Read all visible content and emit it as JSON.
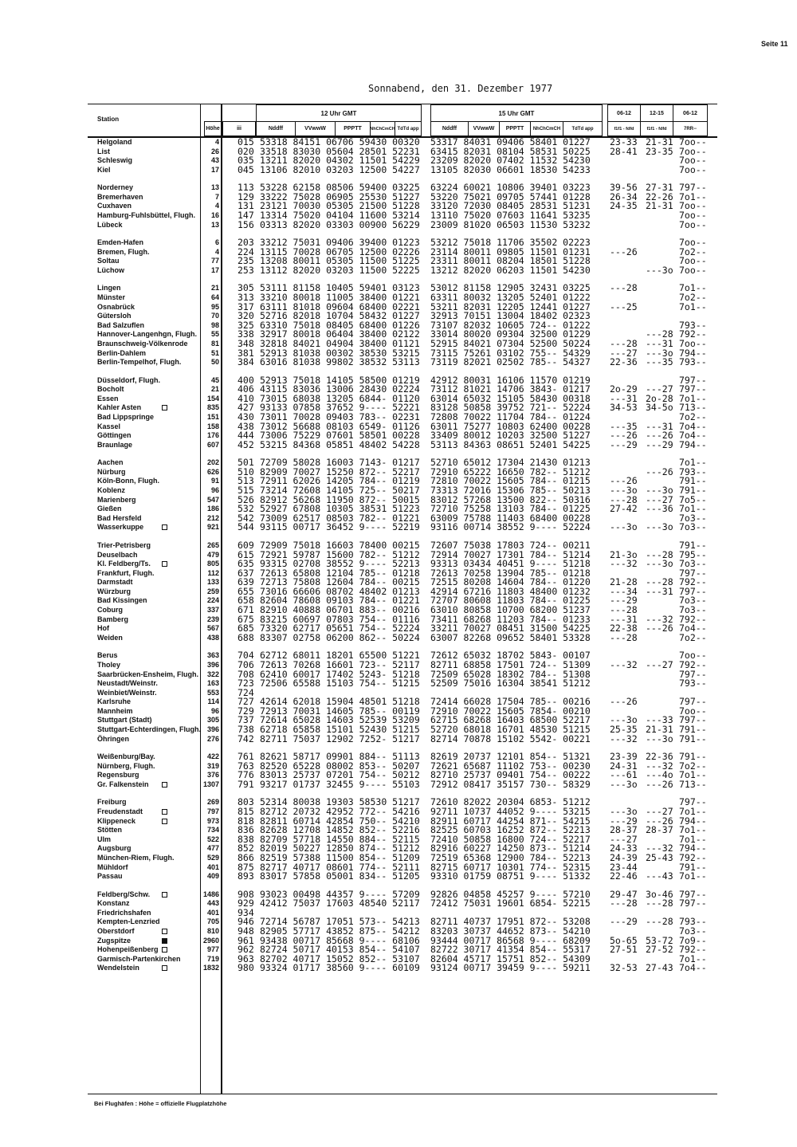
{
  "page_label": "Seite 11",
  "title": "Sonnabend, den 31. Dezember 1977",
  "header": {
    "station": "Station",
    "hoehe": "Höhe",
    "iii": "iii",
    "obs12": "12 Uhr GMT",
    "obs15": "15 Uhr GMT",
    "cols": [
      "Nddff",
      "VVwwW",
      "PPPTT",
      "NhChCmCH",
      "TdTd app"
    ],
    "right_top": [
      "06-12",
      "12-15",
      "06-12"
    ],
    "right_sub": [
      "f1f1 - fdfd",
      "f1f1 - fdfd",
      "7RR--"
    ]
  },
  "groups": [
    {
      "rows": [
        [
          "Helgoland",
          "",
          "4",
          "015",
          "53318 84151 06706 59430 00320",
          "53317 84031 09406 58401 01227",
          "23-33",
          "21-31",
          "7oo--"
        ],
        [
          "List",
          "",
          "26",
          "020",
          "33518 83030 05604 28501 52231",
          "63415 82031 08104 58531 50225",
          "28-41",
          "23-35",
          "7oo--"
        ],
        [
          "Schleswig",
          "",
          "43",
          "035",
          "13211 82020 04302 11501 54229",
          "23209 82020 07402 11532 54230",
          "",
          "",
          "7oo--"
        ],
        [
          "Kiel",
          "",
          "17",
          "045",
          "13106 82010 03203 12500 54227",
          "13105 82030 06601 18530 54233",
          "",
          "",
          "7oo--"
        ]
      ]
    },
    {
      "rows": [
        [
          "Norderney",
          "",
          "13",
          "113",
          "53228 62158 08506 59400 03225",
          "63224 60021 10806 39401 03223",
          "39-56",
          "27-31",
          "797--"
        ],
        [
          "Bremerhaven",
          "",
          "7",
          "129",
          "33222 75028 06905 25530 51227",
          "53220 75021 09705 57441 01228",
          "26-34",
          "22-26",
          "7o1--"
        ],
        [
          "Cuxhaven",
          "",
          "4",
          "131",
          "23121 70030 05305 21500 51228",
          "33120 72030 08405 28531 51231",
          "24-35",
          "21-31",
          "7oo--"
        ],
        [
          "Hamburg-Fuhlsbüttel, Flugh.",
          "",
          "16",
          "147",
          "13314 75020 04104 11600 53214",
          "13110 75020 07603 11641 53235",
          "",
          "",
          "7oo--"
        ],
        [
          "Lübeck",
          "",
          "13",
          "156",
          "03313 82020 03303 00900 56229",
          "23009 81020 06503 11530 53232",
          "",
          "",
          "7oo--"
        ]
      ]
    },
    {
      "rows": [
        [
          "Emden-Hafen",
          "",
          "6",
          "203",
          "33212 75031 09406 39400 01223",
          "53212 75018 11706 35502 02223",
          "",
          "",
          "7oo--"
        ],
        [
          "Bremen, Flugh.",
          "",
          "4",
          "224",
          "13115 70028 06705 12500 02226",
          "23114 80011 09805 11501 01231",
          "---26",
          "",
          "7o2--"
        ],
        [
          "Soltau",
          "",
          "77",
          "235",
          "13208 80011 05305 11500 51225",
          "23311 80011 08204 18501 51228",
          "",
          "",
          "7oo--"
        ],
        [
          "Lüchow",
          "",
          "17",
          "253",
          "13112 82020 03203 11500 52225",
          "13212 82020 06203 11501 54230",
          "",
          "---3o",
          "7oo--"
        ]
      ]
    },
    {
      "rows": [
        [
          "Lingen",
          "",
          "21",
          "305",
          "53111 81158 10405 59401 03123",
          "53012 81158 12905 32431 03225",
          "---28",
          "",
          "7o1--"
        ],
        [
          "Münster",
          "",
          "64",
          "313",
          "33210 80018 11005 38400 01221",
          "63311 80032 13205 52401 01222",
          "",
          "",
          "7o2--"
        ],
        [
          "Osnabrück",
          "",
          "95",
          "317",
          "63111 81018 09604 68400 02221",
          "53211 82031 12205 12441 01227",
          "---25",
          "",
          "7o1--"
        ],
        [
          "Gütersloh",
          "",
          "70",
          "320",
          "52716 82018 10704 58432 01227",
          "32913 70151 13004 18402 02323",
          "",
          "",
          ""
        ],
        [
          "Bad Salzuflen",
          "",
          "98",
          "325",
          "63310 75018 08405 68400 01226",
          "73107 82032 10605 724-- 01222",
          "",
          "",
          "793--"
        ],
        [
          "Hannover-Langenhgn, Flugh.",
          "",
          "55",
          "338",
          "32917 80018 06404 38400 02122",
          "33014 80020 09304 32500 01229",
          "",
          "---28",
          "792--"
        ],
        [
          "Braunschweig-Völkenrode",
          "",
          "81",
          "348",
          "32818 84021 04904 38400 01121",
          "52915 84021 07304 52500 50224",
          "---28",
          "---31",
          "7oo--"
        ],
        [
          "Berlin-Dahlem",
          "",
          "51",
          "381",
          "52913 81038 00302 38530 53215",
          "73115 75261 03102 755-- 54329",
          "---27",
          "---3o",
          "794--"
        ],
        [
          "Berlin-Tempelhof, Flugh.",
          "",
          "50",
          "384",
          "63016 81038 99802 38532 53113",
          "73119 82021 02502 785-- 54327",
          "22-36",
          "---35",
          "793--"
        ]
      ]
    },
    {
      "rows": [
        [
          "Düsseldorf, Flugh.",
          "",
          "45",
          "400",
          "52913 75018 14105 58500 01219",
          "42912 80031 16106 11570 01219",
          "",
          "",
          "797--"
        ],
        [
          "Bocholt",
          "",
          "21",
          "406",
          "43115 83036 13006 28430 02224",
          "73112 81021 14706 3843- 01217",
          "2o-29",
          "---27",
          "797--"
        ],
        [
          "Essen",
          "",
          "154",
          "410",
          "73015 68038 13205 6844- 01120",
          "63014 65032 15105 58430 00318",
          "---31",
          "2o-28",
          "7o1--"
        ],
        [
          "Kahler Asten",
          "open",
          "835",
          "427",
          "93133 07858 37652 9---- 52221",
          "83128 50858 39752 721-- 52224",
          "34-53",
          "34-5o",
          "713--"
        ],
        [
          "Bad Lippspringe",
          "",
          "151",
          "430",
          "73011 70028 09403 783-- 02231",
          "72808 70022 11704 784-- 01224",
          "",
          "",
          "7o2--"
        ],
        [
          "Kassel",
          "",
          "158",
          "438",
          "73012 56688 08103 6549- 01126",
          "63011 75277 10803 62400 00228",
          "---35",
          "---31",
          "7o4--"
        ],
        [
          "Göttingen",
          "",
          "176",
          "444",
          "73006 75229 07601 58501 00228",
          "33409 80012 10203 32500 51227",
          "---26",
          "---26",
          "7o4--"
        ],
        [
          "Braunlage",
          "",
          "607",
          "452",
          "53215 84368 05851 48402 54228",
          "53113 84363 08651 52401 54225",
          "---29",
          "---29",
          "794--"
        ]
      ]
    },
    {
      "rows": [
        [
          "Aachen",
          "",
          "202",
          "501",
          "72709 58028 16003 7143- 01217",
          "52710 65012 17304 21430 01213",
          "",
          "",
          "7o1--"
        ],
        [
          "Nürburg",
          "",
          "626",
          "510",
          "82909 70027 15250 872-- 52217",
          "72910 65222 16650 782-- 51212",
          "",
          "---26",
          "793--"
        ],
        [
          "Köln-Bonn, Flugh.",
          "",
          "91",
          "513",
          "72911 62026 14205 784-- 01219",
          "72810 70022 15605 784-- 01215",
          "---26",
          "",
          "791--"
        ],
        [
          "Koblenz",
          "",
          "96",
          "515",
          "73214 72608 14105 725-- 50217",
          "73313 72016 15306 785-- 50213",
          "---3o",
          "---3o",
          "791--"
        ],
        [
          "Marienberg",
          "",
          "547",
          "526",
          "82912 56268 11950 872-- 50015",
          "83012 57268 13500 822-- 50316",
          "---28",
          "---27",
          "7o5--"
        ],
        [
          "Gießen",
          "",
          "186",
          "532",
          "52927 67808 10305 38531 51223",
          "72710 75258 13103 784-- 01225",
          "27-42",
          "---36",
          "7o1--"
        ],
        [
          "Bad Hersfeld",
          "",
          "212",
          "542",
          "73009 62517 08503 782-- 01221",
          "63009 75788 11403 68400 00228",
          "",
          "",
          "7o3--"
        ],
        [
          "Wasserkuppe",
          "open",
          "921",
          "544",
          "93115 00717 36452 9---- 52219",
          "93116 00714 38552 9---- 52224",
          "---3o",
          "---3o",
          "7o3--"
        ]
      ]
    },
    {
      "rows": [
        [
          "Trier-Petrisberg",
          "",
          "265",
          "609",
          "72909 75018 16603 78400 00215",
          "72607 75038 17803 724-- 00211",
          "",
          "",
          "791--"
        ],
        [
          "Deuselbach",
          "",
          "479",
          "615",
          "72921 59787 15600 782-- 51212",
          "72914 70027 17301 784-- 51214",
          "21-3o",
          "---28",
          "795--"
        ],
        [
          "Kl. Feldberg/Ts.",
          "open",
          "805",
          "635",
          "93315 02708 38552 9---- 52213",
          "93313 03434 40451 9---- 51218",
          "---32",
          "---3o",
          "7o3--"
        ],
        [
          "Frankfurt, Flugh.",
          "",
          "112",
          "637",
          "72613 65808 12104 785-- 01218",
          "72613 70258 13904 785-- 01218",
          "",
          "",
          "797--"
        ],
        [
          "Darmstadt",
          "",
          "133",
          "639",
          "72713 75808 12604 784-- 00215",
          "72515 80208 14604 784-- 01220",
          "21-28",
          "---28",
          "792--"
        ],
        [
          "Würzburg",
          "",
          "259",
          "655",
          "73016 66606 08702 48402 01213",
          "42914 67216 11803 48400 01232",
          "---34",
          "---31",
          "797--"
        ],
        [
          "Bad Kissingen",
          "",
          "224",
          "658",
          "82604 78608 09103 784-- 01221",
          "72707 80608 11803 784-- 01225",
          "---29",
          "",
          "7o3--"
        ],
        [
          "Coburg",
          "",
          "337",
          "671",
          "82910 40888 06701 883-- 00216",
          "63010 80858 10700 68200 51237",
          "---28",
          "",
          "7o3--"
        ],
        [
          "Bamberg",
          "",
          "239",
          "675",
          "83215 60697 07803 754-- 01116",
          "73411 68268 11203 784-- 01233",
          "---31",
          "---32",
          "792--"
        ],
        [
          "Hof",
          "",
          "567",
          "685",
          "73320 62717 05651 754-- 52224",
          "33211 70027 08451 31500 54225",
          "22-38",
          "---26",
          "7o4--"
        ],
        [
          "Weiden",
          "",
          "438",
          "688",
          "83307 02758 06200 862-- 50224",
          "63007 82268 09652 58401 53328",
          "---28",
          "",
          "7o2--"
        ]
      ]
    },
    {
      "rows": [
        [
          "Berus",
          "",
          "363",
          "704",
          "62712 68011 18201 65500 51221",
          "72612 65032 18702 5843- 00107",
          "",
          "",
          "7oo--"
        ],
        [
          "Tholey",
          "",
          "396",
          "706",
          "72613 70268 16601 723-- 52117",
          "82711 68858 17501 724-- 51309",
          "---32",
          "---27",
          "792--"
        ],
        [
          "Saarbrücken-Ensheim, Flugh.",
          "",
          "322",
          "708",
          "62410 60017 17402 5243- 51218",
          "72509 65028 18302 784-- 51308",
          "",
          "",
          "797--"
        ],
        [
          "Neustadt/Weinstr.",
          "",
          "163",
          "723",
          "72506 65588 15103 754-- 51215",
          "52509 75016 16304 38541 51212",
          "",
          "",
          "793--"
        ],
        [
          "Weinbiet/Weinstr.",
          "",
          "553",
          "724",
          "",
          "",
          "",
          "",
          ""
        ],
        [
          "Karlsruhe",
          "",
          "114",
          "727",
          "42614 62018 15904 48501 51218",
          "72414 66028 17504 785-- 00216",
          "---26",
          "",
          "797--"
        ],
        [
          "Mannheim",
          "",
          "96",
          "729",
          "72913 70031 14605 785-- 00119",
          "72910 70022 15605 7854- 00210",
          "",
          "",
          "7oo--"
        ],
        [
          "Stuttgart (Stadt)",
          "",
          "305",
          "737",
          "72614 65028 14603 52539 53209",
          "62715 68268 16403 68500 52217",
          "---3o",
          "---33",
          "797--"
        ],
        [
          "Stuttgart-Echterdingen, Flugh.",
          "",
          "396",
          "738",
          "62718 65858 15101 52430 51215",
          "52720 68018 16701 48530 51215",
          "25-35",
          "21-31",
          "791--"
        ],
        [
          "Öhringen",
          "",
          "276",
          "742",
          "82711 75037 12902 7252- 51217",
          "82714 70878 15102 5542- 00221",
          "---32",
          "---3o",
          "791--"
        ]
      ]
    },
    {
      "rows": [
        [
          "Weißenburg/Bay.",
          "",
          "422",
          "761",
          "82621 58717 09901 884-- 51113",
          "82619 20737 12101 854-- 51321",
          "23-39",
          "22-36",
          "791--"
        ],
        [
          "Nürnberg, Flugh.",
          "",
          "319",
          "763",
          "82520 65228 08002 853-- 50207",
          "72621 65687 11102 753-- 00230",
          "24-31",
          "---32",
          "7o2--"
        ],
        [
          "Regensburg",
          "",
          "376",
          "776",
          "83013 25737 07201 754-- 50212",
          "82710 25737 09401 754-- 00222",
          "---61",
          "---4o",
          "7o1--"
        ],
        [
          "Gr. Falkenstein",
          "open",
          "1307",
          "791",
          "93217 01737 32455 9---- 55103",
          "72912 08417 35157 730-- 58329",
          "---3o",
          "---26",
          "713--"
        ]
      ]
    },
    {
      "rows": [
        [
          "Freiburg",
          "",
          "269",
          "803",
          "52314 80038 19303 58530 51217",
          "72610 82022 20304 6853- 51212",
          "",
          "",
          "797--"
        ],
        [
          "Freudenstadt",
          "open",
          "797",
          "815",
          "82712 20732 42952 772-- 54216",
          "92711 10737 44052 9---- 53215",
          "---3o",
          "---27",
          "7o1--"
        ],
        [
          "Klippeneck",
          "open",
          "973",
          "818",
          "82811 60714 42854 750-- 54210",
          "82911 60717 44254 871-- 54215",
          "---29",
          "---26",
          "794--"
        ],
        [
          "Stötten",
          "",
          "734",
          "836",
          "82628 12708 14852 852-- 52216",
          "82525 60703 16252 872-- 52213",
          "28-37",
          "28-37",
          "7o1--"
        ],
        [
          "Ulm",
          "",
          "522",
          "838",
          "82709 57718 14550 884-- 52115",
          "72410 50858 16800 724-- 52217",
          "---27",
          "",
          "7o1--"
        ],
        [
          "Augsburg",
          "",
          "477",
          "852",
          "82019 50227 12850 874-- 51212",
          "82916 60227 14250 873-- 51214",
          "24-33",
          "---32",
          "794--"
        ],
        [
          "München-Riem, Flugh.",
          "",
          "529",
          "866",
          "82519 57388 11500 854-- 51209",
          "72519 65368 12900 784-- 52213",
          "24-39",
          "25-43",
          "792--"
        ],
        [
          "Mühldorf",
          "",
          "401",
          "875",
          "82717 40717 08601 774-- 52111",
          "82715 60717 10301 774-- 52315",
          "23-44",
          "",
          "791--"
        ],
        [
          "Passau",
          "",
          "409",
          "893",
          "83017 57858 05001 834-- 51205",
          "93310 01759 08751 9---- 51332",
          "22-46",
          "---43",
          "7o1--"
        ]
      ]
    },
    {
      "rows": [
        [
          "Feldberg/Schw.",
          "open",
          "1486",
          "908",
          "93023 00498 44357 9---- 57209",
          "92826 04858 45257 9---- 57210",
          "29-47",
          "3o-46",
          "797--"
        ],
        [
          "Konstanz",
          "",
          "443",
          "929",
          "42412 75037 17603 48540 52117",
          "72412 75031 19601 6854- 52215",
          "---28",
          "---28",
          "797--"
        ],
        [
          "Friedrichshafen",
          "",
          "401",
          "934",
          "",
          "",
          "",
          "",
          ""
        ],
        [
          "Kempten-Lenzried",
          "",
          "705",
          "946",
          "72714 56787 17051 573-- 54213",
          "82711 40737 17951 872-- 53208",
          "---29",
          "---28",
          "793--"
        ],
        [
          "Oberstdorf",
          "open",
          "810",
          "948",
          "82905 57717 43852 875-- 54212",
          "83203 30737 44652 873-- 54210",
          "",
          "",
          "7o3--"
        ],
        [
          "Zugspitze",
          "filled",
          "2960",
          "961",
          "93438 00717 85668 9---- 68106",
          "93444 00717 86568 9---- 68209",
          "5o-65",
          "53-72",
          "7o9--"
        ],
        [
          "Hohenpeißenberg",
          "open",
          "977",
          "962",
          "82724 50717 40153 854-- 54107",
          "82722 30717 41354 854-- 55317",
          "27-51",
          "27-52",
          "792--"
        ],
        [
          "Garmisch-Partenkirchen",
          "",
          "719",
          "963",
          "82702 40717 15052 852-- 53107",
          "82604 45717 15751 852-- 54309",
          "",
          "",
          "7o1--"
        ],
        [
          "Wendelstein",
          "open",
          "1832",
          "980",
          "93324 01717 38560 9---- 60109",
          "93124 00717 39459 9---- 59211",
          "32-53",
          "27-43",
          "7o4--"
        ]
      ]
    }
  ],
  "footnote": "Bei Flughäfen : Höhe = offizielle Flugplatzhöhe"
}
